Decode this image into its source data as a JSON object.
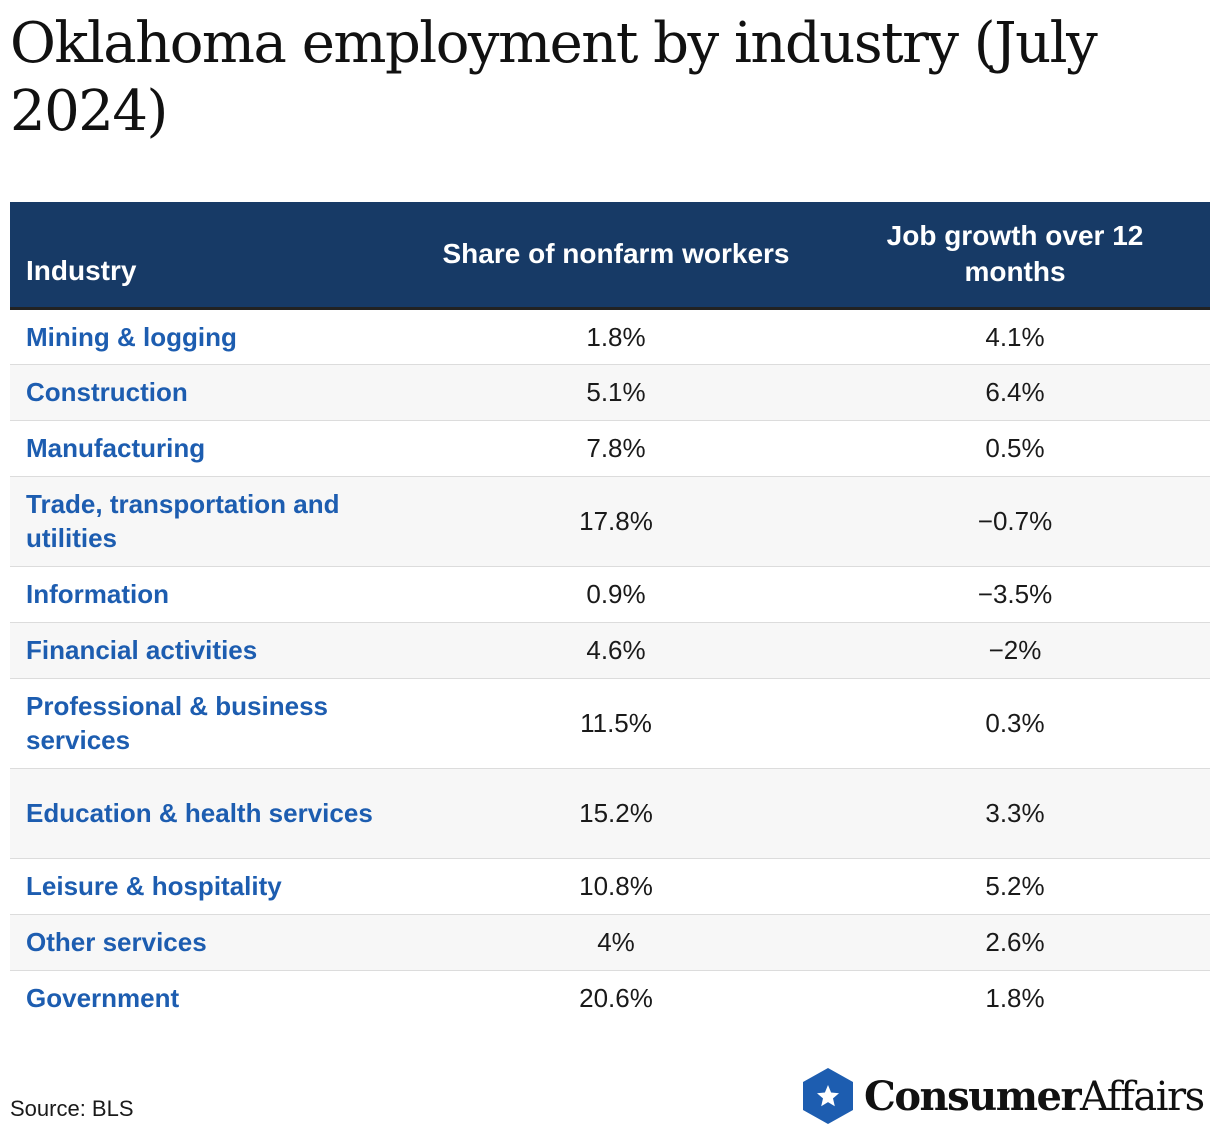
{
  "title": "Oklahoma employment by industry (July 2024)",
  "source": "Source: BLS",
  "brand": {
    "part1": "Consumer",
    "part2": "Affairs",
    "color": "#1d5db0"
  },
  "colors": {
    "header_bg": "#173a66",
    "industry_text": "#1d5db0"
  },
  "chart_data": {
    "type": "table",
    "title": "Oklahoma employment by industry (July 2024)",
    "columns": [
      "Industry",
      "Share of nonfarm workers",
      "Job growth over 12 months"
    ],
    "rows": [
      {
        "industry": "Mining & logging",
        "share": "1.8%",
        "growth": "4.1%"
      },
      {
        "industry": "Construction",
        "share": "5.1%",
        "growth": "6.4%"
      },
      {
        "industry": "Manufacturing",
        "share": "7.8%",
        "growth": "0.5%"
      },
      {
        "industry": "Trade, transportation and utilities",
        "share": "17.8%",
        "growth": "−0.7%"
      },
      {
        "industry": "Information",
        "share": "0.9%",
        "growth": "−3.5%"
      },
      {
        "industry": "Financial activities",
        "share": "4.6%",
        "growth": "−2%"
      },
      {
        "industry": "Professional & business services",
        "share": "11.5%",
        "growth": "0.3%"
      },
      {
        "industry": "Education & health services",
        "share": "15.2%",
        "growth": "3.3%"
      },
      {
        "industry": "Leisure & hospitality",
        "share": "10.8%",
        "growth": "5.2%"
      },
      {
        "industry": "Other services",
        "share": "4%",
        "growth": "2.6%"
      },
      {
        "industry": "Government",
        "share": "20.6%",
        "growth": "1.8%"
      }
    ]
  }
}
